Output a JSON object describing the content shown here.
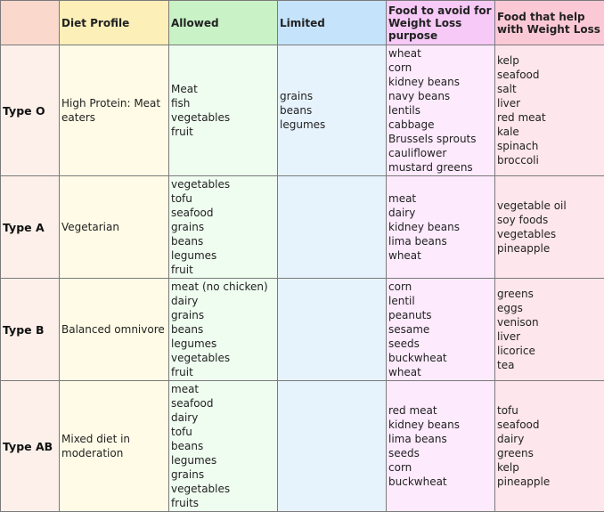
{
  "colors": {
    "col_type_header": "#fbd8cc",
    "col_type_body": "#fdf0ea",
    "col_profile_header": "#fdefb8",
    "col_profile_body": "#fffbe6",
    "col_allowed_header": "#c9f2c6",
    "col_allowed_body": "#effdf0",
    "col_limited_header": "#c5e4fb",
    "col_limited_body": "#e6f3fd",
    "col_avoid_header": "#f6c9f6",
    "col_avoid_body": "#fdeafd",
    "col_help_header": "#fbc9d6",
    "col_help_body": "#fde6ec"
  },
  "headers": {
    "type": "",
    "diet_profile": "Diet Profile",
    "allowed": "Allowed",
    "limited": "Limited",
    "avoid": "Food to avoid for Weight Loss purpose",
    "help": "Food that help with Weight Loss"
  },
  "rows": [
    {
      "type": "Type O",
      "profile": "High Protein: Meat eaters",
      "allowed": [
        "Meat",
        "fish",
        "vegetables",
        "fruit"
      ],
      "limited": [
        "grains",
        "beans",
        "legumes"
      ],
      "avoid": [
        "wheat",
        "corn",
        "kidney beans",
        "navy beans",
        "lentils",
        "cabbage",
        "Brussels sprouts",
        "cauliflower",
        "mustard greens"
      ],
      "help": [
        "kelp",
        "seafood",
        "salt",
        "liver",
        "red meat",
        "kale",
        "spinach",
        "broccoli"
      ]
    },
    {
      "type": "Type A",
      "profile": "Vegetarian",
      "allowed": [
        "vegetables",
        "tofu",
        "seafood",
        "grains",
        "beans",
        "legumes",
        "fruit"
      ],
      "limited": [],
      "avoid": [
        "meat",
        "dairy",
        "kidney beans",
        "lima beans",
        "wheat"
      ],
      "help": [
        "vegetable oil",
        "soy foods",
        "vegetables",
        "pineapple"
      ]
    },
    {
      "type": "Type B",
      "profile": "Balanced omnivore",
      "allowed": [
        "meat (no chicken)",
        "dairy",
        "grains",
        "beans",
        "legumes",
        "vegetables",
        "fruit"
      ],
      "limited": [],
      "avoid": [
        "corn",
        "lentil",
        "peanuts",
        "sesame",
        "seeds",
        "buckwheat",
        "wheat"
      ],
      "help": [
        "greens",
        "eggs",
        "venison",
        "liver",
        "licorice",
        "tea"
      ]
    },
    {
      "type": "Type AB",
      "profile": "Mixed diet in moderation",
      "allowed": [
        "meat",
        "seafood",
        "dairy",
        "tofu",
        "beans",
        "legumes",
        "grains",
        "vegetables",
        "fruits"
      ],
      "limited": [],
      "avoid": [
        "red meat",
        "kidney beans",
        "lima beans",
        "seeds",
        "corn",
        "buckwheat"
      ],
      "help": [
        "tofu",
        "seafood",
        "dairy",
        "greens",
        "kelp",
        "pineapple"
      ]
    }
  ]
}
